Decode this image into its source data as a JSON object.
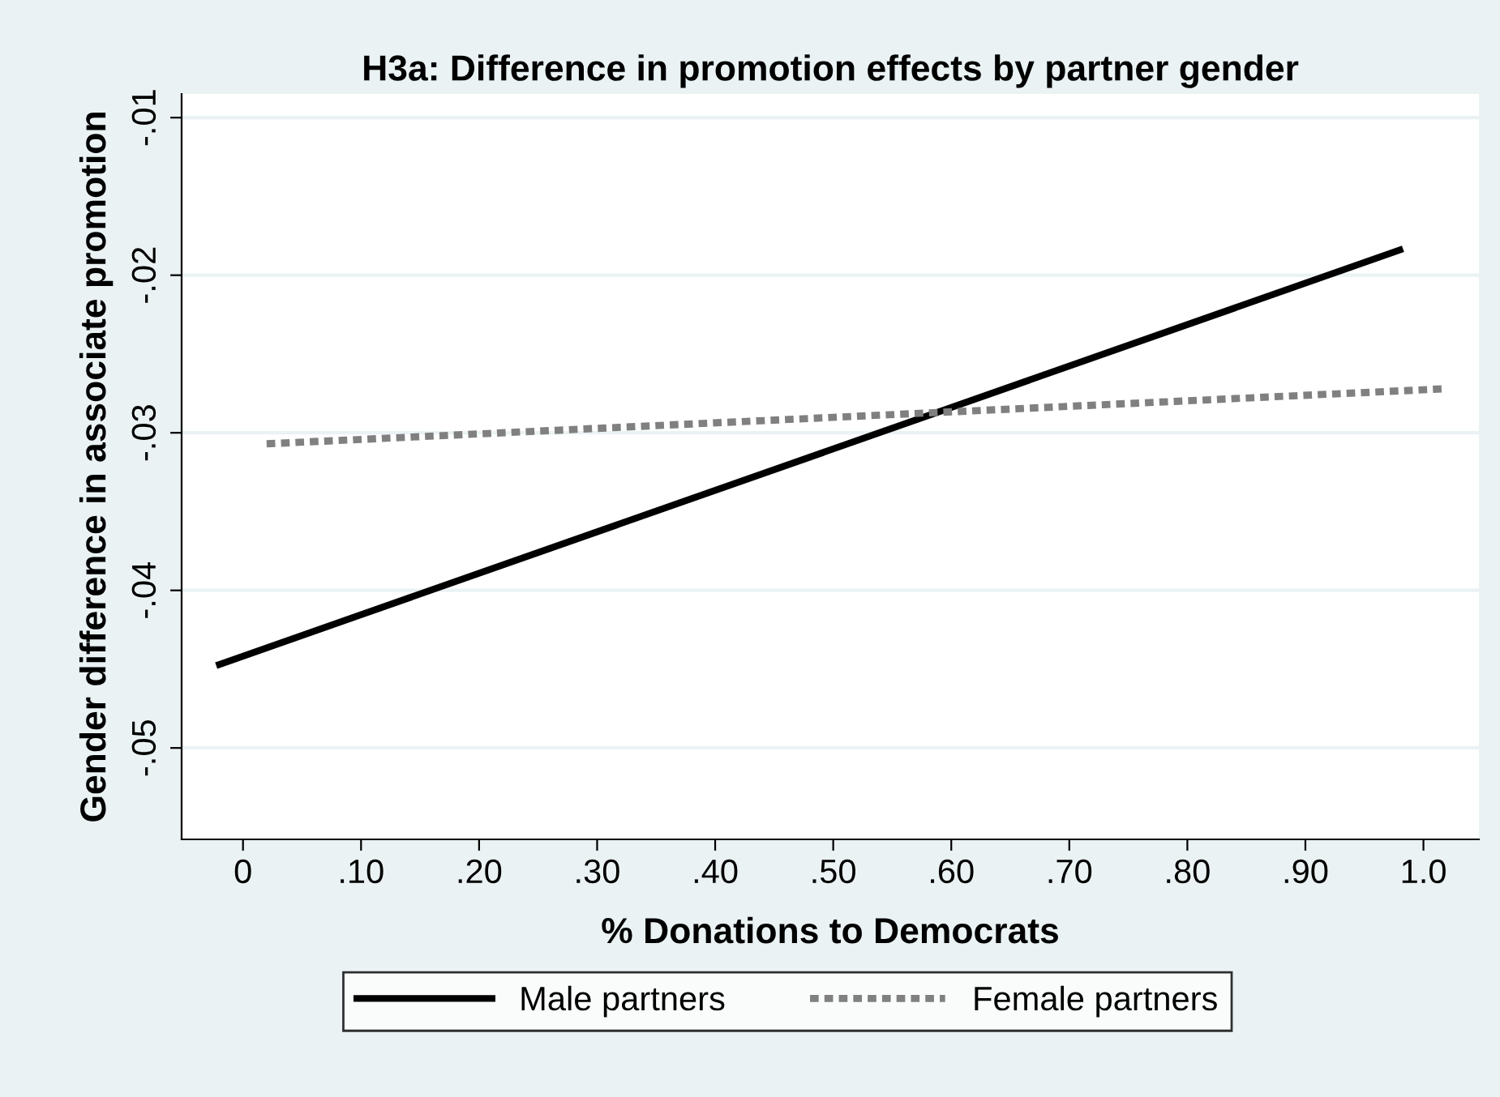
{
  "chart_data": {
    "type": "line",
    "title": "H3a: Difference in promotion effects by partner gender",
    "xlabel": "% Donations to Democrats",
    "ylabel": "Gender difference in associate promotion",
    "series": [
      {
        "name": "Male partners",
        "color": "#000000",
        "x": [
          -0.02,
          0.98
        ],
        "values": [
          -0.0447,
          -0.0184
        ],
        "line_style": "solid"
      },
      {
        "name": "Female partners",
        "color": "#808080",
        "x": [
          0.02,
          1.02
        ],
        "values": [
          -0.0307,
          -0.0272
        ],
        "line_style": "dotted"
      }
    ],
    "xlim": [
      -0.052,
      1.047
    ],
    "ylim": [
      -0.0558,
      -0.0085
    ],
    "xticks": [
      0,
      {
        "value": 0.1,
        "label": ".10"
      },
      {
        "value": 0.2,
        "label": ".20"
      },
      {
        "value": 0.3,
        "label": ".30"
      },
      {
        "value": 0.4,
        "label": ".40"
      },
      {
        "value": 0.5,
        "label": ".50"
      },
      {
        "value": 0.6,
        "label": ".60"
      },
      {
        "value": 0.7,
        "label": ".70"
      },
      {
        "value": 0.8,
        "label": ".80"
      },
      {
        "value": 0.9,
        "label": ".90"
      },
      {
        "value": 1.0,
        "label": "1.0"
      }
    ],
    "yticks": [
      {
        "value": -0.05,
        "label": "-.05"
      },
      {
        "value": -0.04,
        "label": "-.04"
      },
      {
        "value": -0.03,
        "label": "-.03"
      },
      {
        "value": -0.02,
        "label": "-.02"
      },
      {
        "value": -0.01,
        "label": "-.01"
      }
    ],
    "grid": "y",
    "legend": "bottom"
  }
}
